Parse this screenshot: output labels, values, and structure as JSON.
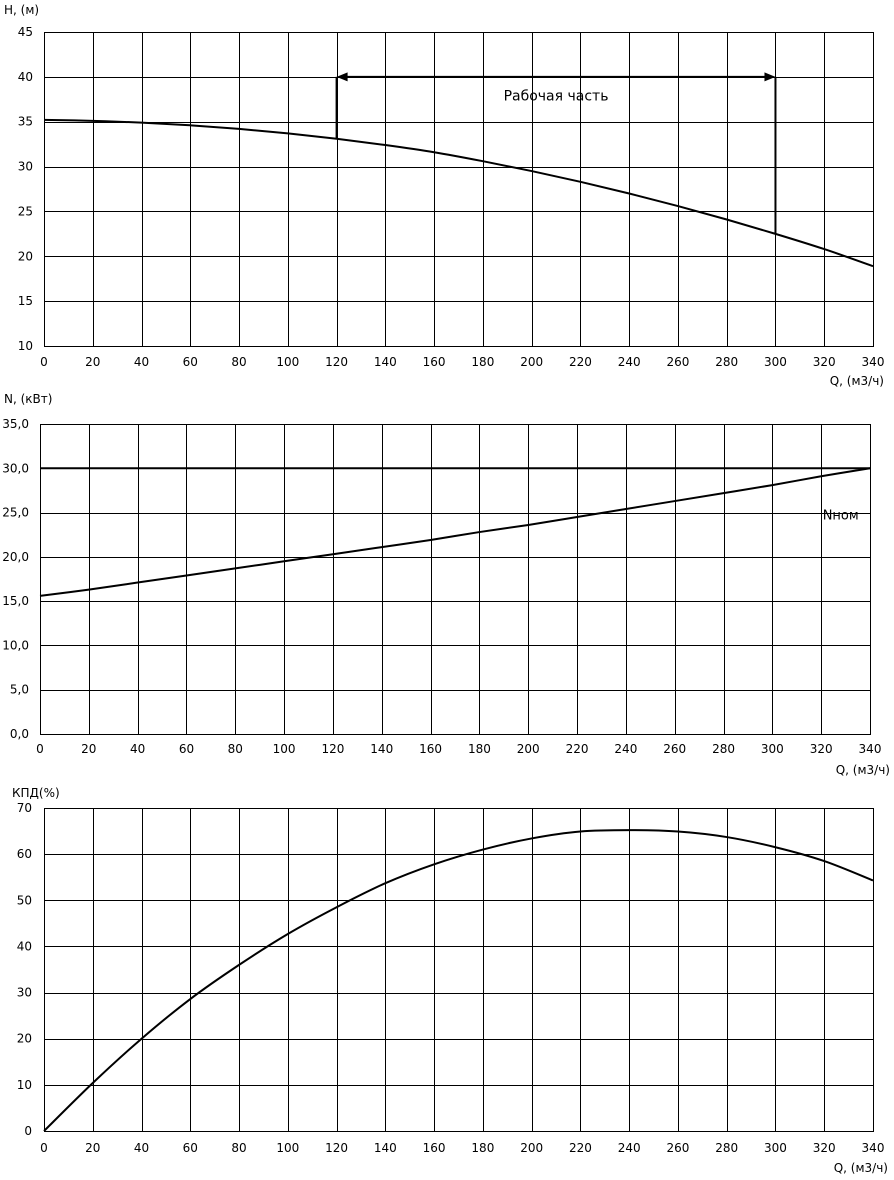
{
  "chart_data": [
    {
      "type": "line",
      "ylabel": "H, (м)",
      "xlabel": "Q, (м3/ч)",
      "xlim": [
        0,
        340
      ],
      "ylim": [
        10,
        45
      ],
      "x_ticks": [
        0,
        20,
        40,
        60,
        80,
        100,
        120,
        140,
        160,
        180,
        200,
        220,
        240,
        260,
        280,
        300,
        320,
        340
      ],
      "y_ticks": [
        10,
        15,
        20,
        25,
        30,
        35,
        40,
        45
      ],
      "y_tick_labels": [
        "10",
        "15",
        "20",
        "25",
        "30",
        "35",
        "40",
        "45"
      ],
      "grid": true,
      "series": [
        {
          "x": [
            0,
            20,
            40,
            60,
            80,
            100,
            120,
            140,
            160,
            180,
            200,
            220,
            240,
            260,
            280,
            300,
            320,
            340
          ],
          "values": [
            35.2,
            35.1,
            34.9,
            34.6,
            34.2,
            33.7,
            33.1,
            32.4,
            31.6,
            30.6,
            29.5,
            28.3,
            27.0,
            25.6,
            24.1,
            22.5,
            20.8,
            18.9
          ]
        }
      ],
      "annotation": {
        "text": "Рабочая часть",
        "range": [
          120,
          300
        ],
        "arrow_level": 40,
        "text_x": 210,
        "text_y": 37.9
      }
    },
    {
      "type": "line",
      "ylabel": "N, (кВт)",
      "xlabel": "Q, (м3/ч)",
      "xlim": [
        0,
        340
      ],
      "ylim": [
        0,
        35
      ],
      "x_ticks": [
        0,
        20,
        40,
        60,
        80,
        100,
        120,
        140,
        160,
        180,
        200,
        220,
        240,
        260,
        280,
        300,
        320,
        340
      ],
      "y_ticks": [
        0,
        5,
        10,
        15,
        20,
        25,
        30,
        35
      ],
      "y_tick_labels": [
        "0,0",
        "5,0",
        "10,0",
        "15,0",
        "20,0",
        "25,0",
        "30,0",
        "35,0"
      ],
      "grid": true,
      "series": [
        {
          "x": [
            0,
            20,
            40,
            60,
            80,
            100,
            120,
            140,
            160,
            180,
            200,
            220,
            240,
            260,
            280,
            300,
            320,
            340
          ],
          "values": [
            15.6,
            16.3,
            17.1,
            17.9,
            18.7,
            19.5,
            20.3,
            21.1,
            21.9,
            22.8,
            23.6,
            24.5,
            25.4,
            26.3,
            27.2,
            28.1,
            29.1,
            30.0
          ]
        },
        {
          "name": "Nном",
          "x": [
            0,
            340
          ],
          "values": [
            30.0,
            30.0
          ]
        }
      ],
      "annotation": {
        "text": "Nном",
        "text_x": 328,
        "text_y": 24.8
      }
    },
    {
      "type": "line",
      "ylabel": "КПД(%)",
      "xlabel": "Q, (м3/ч)",
      "xlim": [
        0,
        340
      ],
      "ylim": [
        0,
        70
      ],
      "x_ticks": [
        0,
        20,
        40,
        60,
        80,
        100,
        120,
        140,
        160,
        180,
        200,
        220,
        240,
        260,
        280,
        300,
        320,
        340
      ],
      "y_ticks": [
        0,
        10,
        20,
        30,
        40,
        50,
        60,
        70
      ],
      "y_tick_labels": [
        "0",
        "10",
        "20",
        "30",
        "40",
        "50",
        "60",
        "70"
      ],
      "grid": true,
      "series": [
        {
          "x": [
            0,
            20,
            40,
            60,
            80,
            100,
            120,
            140,
            160,
            180,
            200,
            220,
            240,
            260,
            280,
            300,
            320,
            340
          ],
          "values": [
            0.0,
            10.4,
            20.0,
            28.6,
            36.0,
            42.7,
            48.5,
            53.7,
            57.8,
            61.0,
            63.4,
            64.9,
            65.2,
            64.9,
            63.7,
            61.5,
            58.5,
            54.3
          ]
        }
      ]
    }
  ]
}
